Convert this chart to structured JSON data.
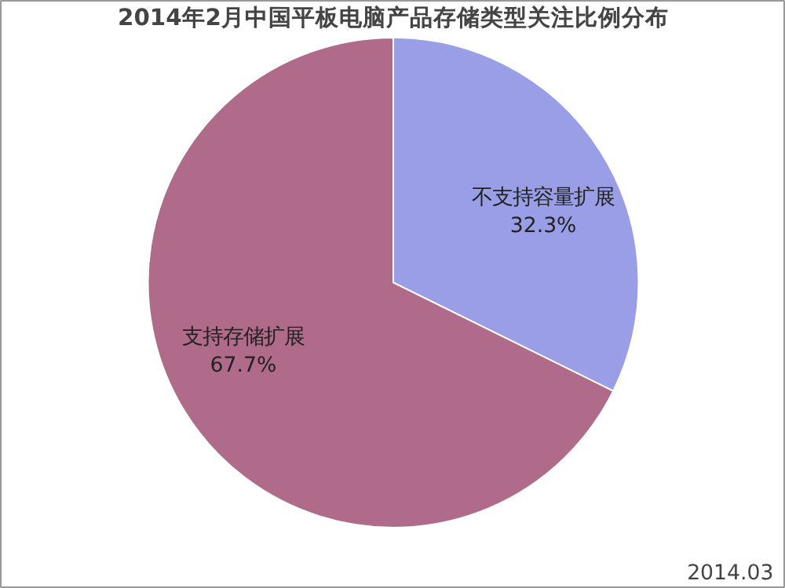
{
  "chart_data": {
    "type": "pie",
    "title": "2014年2月中国平板电脑产品存储类型关注比例分布",
    "categories": [
      "不支持容量扩展",
      "支持存储扩展"
    ],
    "values": [
      32.3,
      67.7
    ],
    "colors": [
      "#9a9ee6",
      "#b06a8a"
    ],
    "value_labels": [
      "32.3%",
      "67.7%"
    ],
    "annotations": [
      "2014.03"
    ]
  }
}
